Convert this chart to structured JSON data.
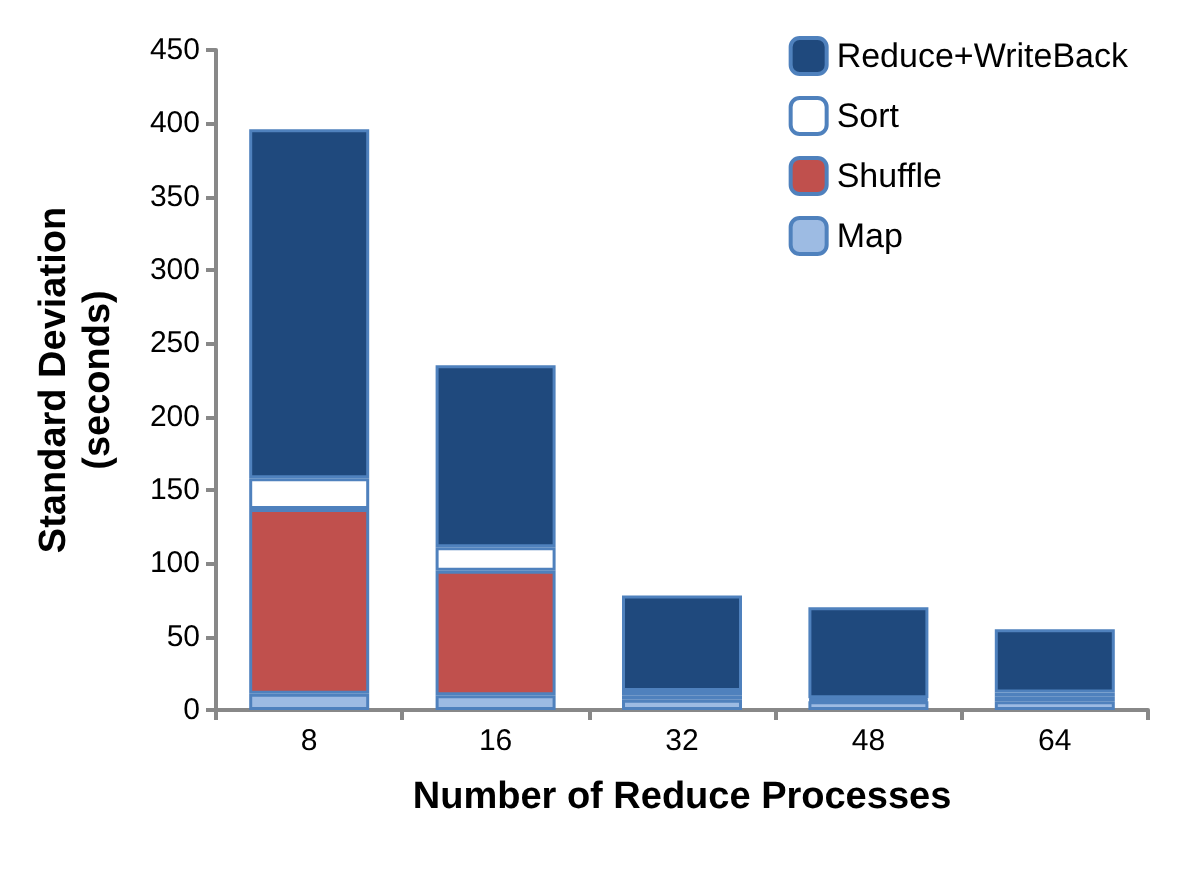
{
  "chart_data": {
    "type": "bar",
    "stacked": true,
    "xlabel": "Number of Reduce Processes",
    "ylabel": "Standard Deviation\n(seconds)",
    "categories": [
      "8",
      "16",
      "32",
      "48",
      "64"
    ],
    "series": [
      {
        "name": "Map",
        "color": "#9dbbe3",
        "values": [
          11,
          10,
          7,
          6,
          6
        ]
      },
      {
        "name": "Shuffle",
        "color": "#c0504d",
        "values": [
          126,
          85,
          3,
          1,
          3
        ]
      },
      {
        "name": "Sort",
        "color": "#ffffff",
        "values": [
          21,
          16,
          3,
          1,
          3
        ]
      },
      {
        "name": "Reduce+WriteBack",
        "color": "#1f497d",
        "values": [
          238,
          124,
          65,
          62,
          43
        ]
      }
    ],
    "ylim": [
      0,
      450
    ],
    "yticks": [
      0,
      50,
      100,
      150,
      200,
      250,
      300,
      350,
      400,
      450
    ],
    "grid": false,
    "legend": "top right"
  }
}
